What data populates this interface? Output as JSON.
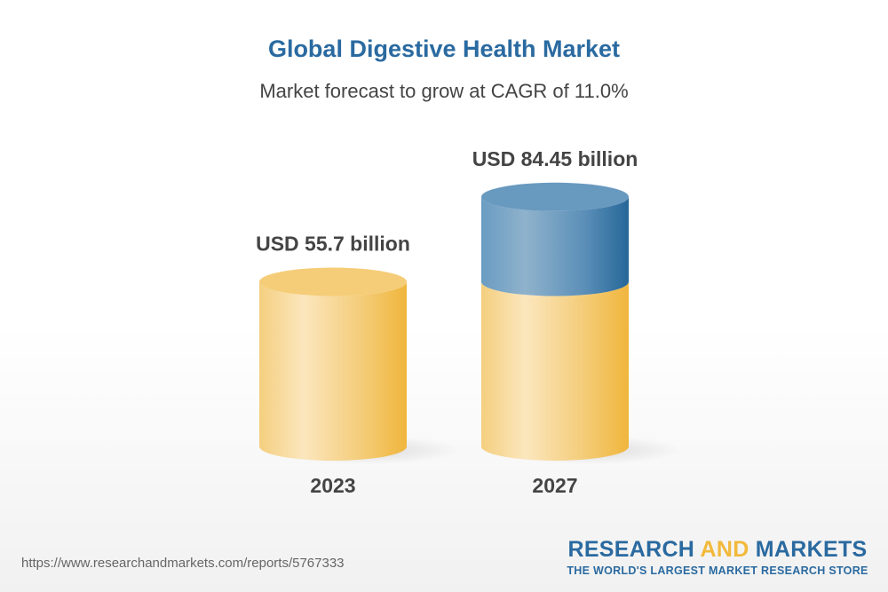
{
  "chart_data": {
    "type": "bar",
    "title": "Global Digestive Health Market",
    "subtitle": "Market forecast to grow at CAGR of 11.0%",
    "categories": [
      "2023",
      "2027"
    ],
    "values": [
      55.7,
      84.45
    ],
    "data_labels": [
      "USD 55.7 billion",
      "USD 84.45 billion"
    ],
    "unit": "USD billion",
    "style": "3d-cylinder",
    "colors": {
      "base": "#f2c25a",
      "growth": "#2a6aa0"
    }
  },
  "footer": {
    "url": "https://www.researchandmarkets.com/reports/5767333",
    "logo_part1": "RESEARCH ",
    "logo_part2": "AND",
    "logo_part3": " MARKETS",
    "logo_tagline": "THE WORLD'S LARGEST MARKET RESEARCH STORE"
  }
}
